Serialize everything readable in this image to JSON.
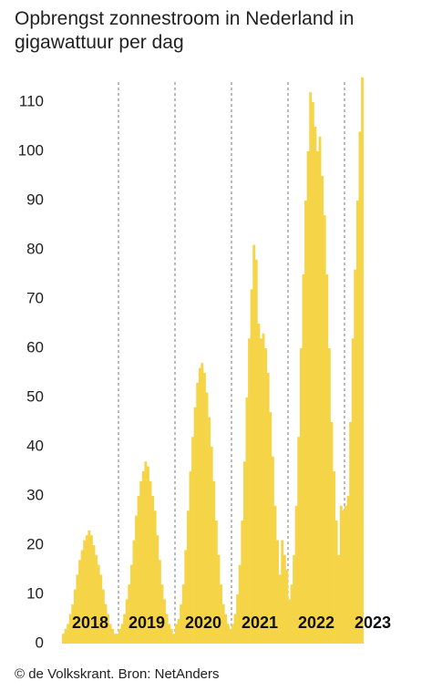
{
  "chart_data": {
    "type": "bar",
    "title": "Opbrengst zonnestroom in Nederland in gigawattuur per dag",
    "source": "© de Volkskrant. Bron: NetAnders",
    "color": "#f5d547",
    "grid": false,
    "ylim": [
      0,
      115
    ],
    "yticks": [
      0,
      10,
      20,
      30,
      40,
      50,
      60,
      70,
      80,
      90,
      100,
      110
    ],
    "categories": [
      null,
      null,
      null,
      null,
      null,
      null,
      null,
      null,
      null,
      null,
      null,
      null,
      "2018",
      null,
      null,
      null,
      null,
      null,
      null,
      null,
      null,
      null,
      null,
      null,
      null,
      null,
      null,
      null,
      null,
      null,
      null,
      null,
      null,
      null,
      null,
      null,
      "2019",
      null,
      null,
      null,
      null,
      null,
      null,
      null,
      null,
      null,
      null,
      null,
      null,
      null,
      null,
      null,
      null,
      null,
      null,
      null,
      null,
      null,
      null,
      null,
      "2020",
      null,
      null,
      null,
      null,
      null,
      null,
      null,
      null,
      null,
      null,
      null,
      null,
      null,
      null,
      null,
      null,
      null,
      null,
      null,
      null,
      null,
      null,
      null,
      "2021",
      null,
      null,
      null,
      null,
      null,
      null,
      null,
      null,
      null,
      null,
      null,
      null,
      null,
      null,
      null,
      null,
      null,
      null,
      null,
      null,
      null,
      null,
      null,
      "2022",
      null,
      null,
      null,
      null,
      null,
      null,
      null,
      null,
      null,
      null,
      null,
      null,
      null,
      null,
      null,
      null,
      null,
      null,
      null,
      null,
      null,
      null,
      null,
      "2023",
      null,
      null,
      null,
      null,
      null,
      null,
      null,
      null,
      null,
      null,
      null
    ],
    "values": [
      2,
      3,
      4,
      6,
      8,
      11,
      14,
      17,
      19,
      21,
      22,
      23,
      22,
      20,
      18,
      16,
      14,
      11,
      8,
      6,
      4,
      3,
      2,
      2,
      3,
      4,
      6,
      9,
      12,
      16,
      21,
      26,
      30,
      33,
      35,
      37,
      36,
      33,
      30,
      27,
      22,
      17,
      12,
      9,
      6,
      4,
      3,
      2,
      4,
      5,
      8,
      12,
      19,
      27,
      35,
      42,
      48,
      53,
      56,
      57,
      55,
      51,
      46,
      40,
      33,
      25,
      18,
      12,
      8,
      6,
      4,
      3,
      4,
      6,
      10,
      16,
      25,
      37,
      50,
      62,
      72,
      81,
      78,
      65,
      62,
      63,
      60,
      55,
      47,
      38,
      28,
      21,
      14,
      21,
      18,
      15,
      9,
      12,
      18,
      28,
      42,
      60,
      75,
      90,
      100,
      112,
      110,
      105,
      100,
      103,
      95,
      87,
      75,
      60,
      45,
      35,
      25,
      18,
      28,
      27,
      28,
      30,
      45,
      62,
      76,
      90,
      104,
      115,
      null,
      null,
      null,
      null,
      null,
      null,
      null,
      null,
      null,
      null,
      null,
      null,
      null,
      null,
      null,
      null
    ]
  }
}
